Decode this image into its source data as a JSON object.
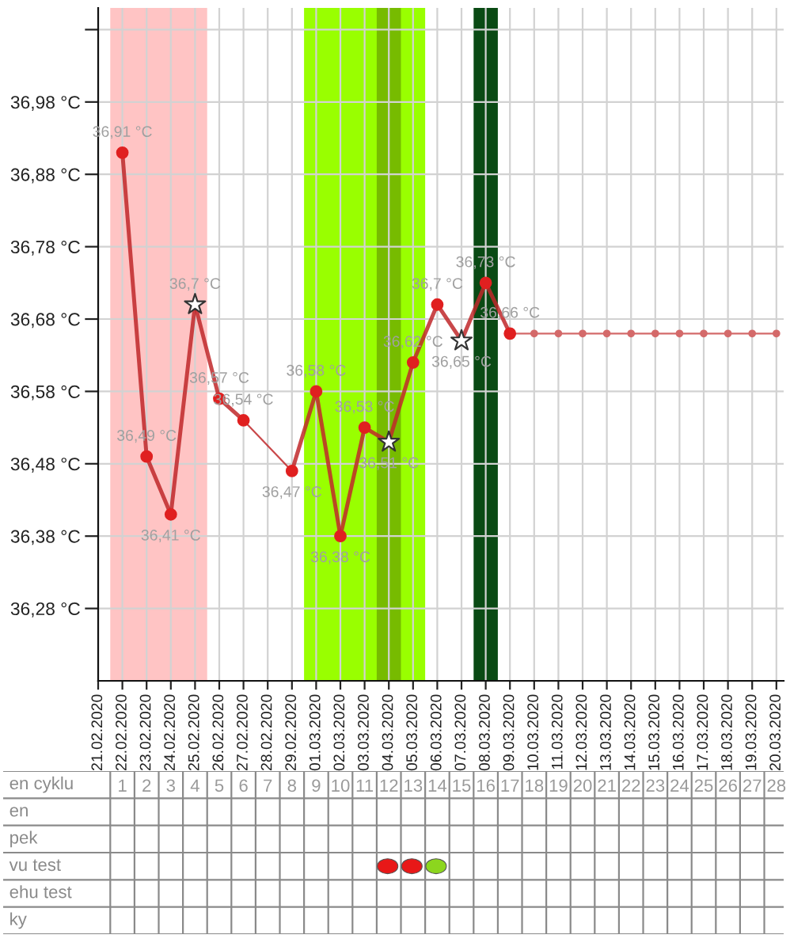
{
  "chart_data": [
    {
      "type": "line",
      "categories": [
        "21.02.2020",
        "22.02.2020",
        "23.02.2020",
        "24.02.2020",
        "25.02.2020",
        "26.02.2020",
        "27.02.2020",
        "28.02.2020",
        "29.02.2020",
        "01.03.2020",
        "02.03.2020",
        "03.03.2020",
        "04.03.2020",
        "05.03.2020",
        "06.03.2020",
        "07.03.2020",
        "08.03.2020",
        "09.03.2020",
        "10.03.2020",
        "11.03.2020",
        "12.03.2020",
        "13.03.2020",
        "14.03.2020",
        "15.03.2020",
        "16.03.2020",
        "17.03.2020",
        "18.03.2020",
        "19.03.2020",
        "20.03.2020"
      ],
      "series": [
        {
          "type": "line",
          "color": "#c0282a",
          "marker": "none",
          "values": [
            null,
            36.91,
            36.49,
            36.41,
            36.7,
            36.57,
            36.54,
            null,
            36.47,
            36.58,
            36.38,
            36.53,
            36.51,
            36.62,
            36.7,
            36.65,
            36.73,
            36.66,
            null,
            null,
            null,
            null,
            null,
            null,
            null,
            null,
            null,
            null,
            null
          ],
          "value_labels": [
            null,
            "36,91 °C",
            "36,49 °C",
            "36,41 °C",
            "36,7 °C",
            "36,57 °C",
            "36,54 °C",
            null,
            "36,47 °C",
            "36,58 °C",
            "36,38 °C",
            "36,53 °C",
            "36,51 °C",
            "36,62 °C",
            "36,7 °C",
            "36,65 °C",
            "36,73 °C",
            "36,66 °C",
            null,
            null,
            null,
            null,
            null,
            null,
            null,
            null,
            null,
            null,
            null
          ]
        },
        {
          "type": "scatter",
          "color": "#e02020",
          "marker": "circle",
          "values": [
            null,
            36.91,
            36.49,
            36.41,
            null,
            36.57,
            36.54,
            null,
            36.47,
            36.58,
            36.38,
            36.53,
            null,
            36.62,
            36.7,
            null,
            36.73,
            36.66,
            null,
            null,
            null,
            null,
            null,
            null,
            null,
            null,
            null,
            null,
            null
          ]
        },
        {
          "type": "scatter",
          "color": "#ffffff",
          "marker": "star",
          "values": [
            null,
            null,
            null,
            null,
            36.7,
            null,
            null,
            null,
            null,
            null,
            null,
            null,
            36.51,
            null,
            null,
            36.65,
            null,
            null,
            null,
            null,
            null,
            null,
            null,
            null,
            null,
            null,
            null,
            null,
            null
          ]
        },
        {
          "type": "line",
          "color": "#d46a6a",
          "marker": "circle",
          "values": [
            null,
            null,
            null,
            null,
            null,
            null,
            null,
            null,
            null,
            null,
            null,
            null,
            null,
            null,
            null,
            null,
            null,
            36.66,
            36.66,
            36.66,
            36.66,
            36.66,
            36.66,
            36.66,
            36.66,
            36.66,
            36.66,
            36.66,
            36.66
          ]
        }
      ],
      "ylim": [
        36.18,
        37.11
      ],
      "yticks": [
        {
          "value": 36.28,
          "label": "36,28 °C"
        },
        {
          "value": 36.38,
          "label": "36,38 °C"
        },
        {
          "value": 36.48,
          "label": "36,48 °C"
        },
        {
          "value": 36.58,
          "label": "36,58 °C"
        },
        {
          "value": 36.68,
          "label": "36,68 °C"
        },
        {
          "value": 36.78,
          "label": "36,78 °C"
        },
        {
          "value": 36.88,
          "label": "36,88 °C"
        },
        {
          "value": 36.98,
          "label": "36,98 °C"
        },
        {
          "value": 37.08,
          "label": null
        }
      ],
      "grid": true,
      "bands": [
        {
          "axis": "x",
          "from": "22.02.2020",
          "to": "25.02.2020",
          "color": "#ffc4c4"
        },
        {
          "axis": "x",
          "from": "01.03.2020",
          "to": "05.03.2020",
          "color": "#99ff00"
        },
        {
          "axis": "x",
          "from": "04.03.2020",
          "to": "04.03.2020",
          "color": "#77bb00"
        },
        {
          "axis": "x",
          "from": "08.03.2020",
          "to": "08.03.2020",
          "color": "#0a4a14"
        }
      ]
    },
    {
      "type": "heatmap",
      "xlabel": "en cyklu",
      "categories": [
        "1",
        "2",
        "3",
        "4",
        "5",
        "6",
        "7",
        "8",
        "9",
        "10",
        "11",
        "12",
        "13",
        "14",
        "15",
        "16",
        "17",
        "18",
        "19",
        "20",
        "21",
        "22",
        "23",
        "24",
        "25",
        "26",
        "27",
        "28"
      ],
      "y_categories": [
        "en",
        "pek",
        "vu test",
        "ehu test",
        "ky"
      ],
      "cells": [
        [
          null,
          null,
          null,
          null,
          null,
          null,
          null,
          null,
          null,
          null,
          null,
          null,
          null,
          null,
          null,
          null,
          null,
          null,
          null,
          null,
          null,
          null,
          null,
          null,
          null,
          null,
          null,
          null
        ],
        [
          null,
          null,
          null,
          null,
          null,
          null,
          null,
          null,
          null,
          null,
          null,
          null,
          null,
          null,
          null,
          null,
          null,
          null,
          null,
          null,
          null,
          null,
          null,
          null,
          null,
          null,
          null,
          null
        ],
        [
          null,
          null,
          null,
          null,
          null,
          null,
          null,
          null,
          null,
          null,
          null,
          null,
          null,
          null,
          null,
          null,
          null,
          null,
          null,
          null,
          null,
          null,
          null,
          null,
          null,
          null,
          null,
          null
        ],
        [
          null,
          null,
          null,
          null,
          null,
          null,
          null,
          null,
          null,
          null,
          null,
          null,
          null,
          null,
          null,
          null,
          null,
          null,
          null,
          null,
          null,
          null,
          null,
          null,
          null,
          null,
          null,
          null
        ],
        [
          null,
          null,
          null,
          null,
          null,
          null,
          null,
          null,
          null,
          null,
          null,
          null,
          null,
          null,
          null,
          null,
          null,
          null,
          null,
          null,
          null,
          null,
          null,
          null,
          null,
          null,
          null,
          null
        ]
      ],
      "colors": [
        [
          null,
          null,
          null,
          null,
          null,
          null,
          null,
          null,
          null,
          null,
          null,
          null,
          null,
          null,
          null,
          null,
          null,
          null,
          null,
          null,
          null,
          null,
          null,
          null,
          null,
          null,
          null,
          null
        ],
        [
          null,
          null,
          null,
          null,
          null,
          null,
          null,
          null,
          null,
          null,
          null,
          null,
          null,
          null,
          null,
          null,
          null,
          null,
          null,
          null,
          null,
          null,
          null,
          null,
          null,
          null,
          null,
          null
        ],
        [
          null,
          null,
          null,
          null,
          null,
          null,
          null,
          null,
          null,
          null,
          null,
          "#e81818",
          "#e81818",
          "#8cd61e",
          null,
          null,
          null,
          null,
          null,
          null,
          null,
          null,
          null,
          null,
          null,
          null,
          null,
          null
        ],
        [
          null,
          null,
          null,
          null,
          null,
          null,
          null,
          null,
          null,
          null,
          null,
          null,
          null,
          null,
          null,
          null,
          null,
          null,
          null,
          null,
          null,
          null,
          null,
          null,
          null,
          null,
          null,
          null
        ],
        [
          null,
          null,
          null,
          null,
          null,
          null,
          null,
          null,
          null,
          null,
          null,
          null,
          null,
          null,
          null,
          null,
          null,
          null,
          null,
          null,
          null,
          null,
          null,
          null,
          null,
          null,
          null,
          null
        ]
      ]
    }
  ]
}
